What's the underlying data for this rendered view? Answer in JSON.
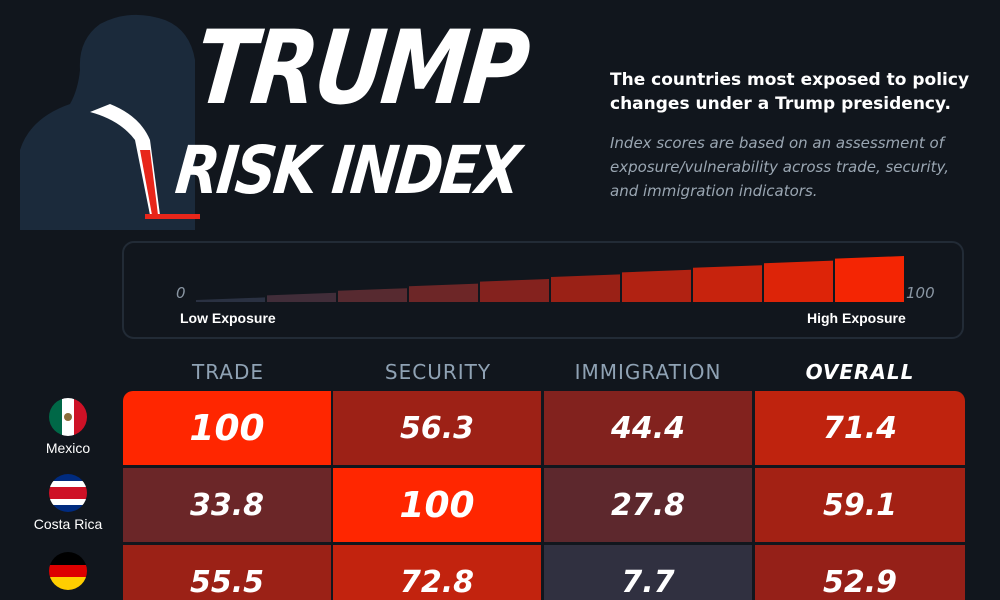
{
  "title": {
    "line1": "TRUMP",
    "line2": "RISK INDEX"
  },
  "subtitle": "The countries most exposed to policy changes under a Trump presidency.",
  "description": "Index scores are based on an assessment of exposure/vulnerability across trade, security, and immigration indicators.",
  "scale": {
    "min": "0",
    "max": "100",
    "low_label": "Low Exposure",
    "high_label": "High Exposure"
  },
  "colors": {
    "background": "#11161d",
    "high": "#ff2200",
    "low": "#1c3246",
    "mid": "#9a1f18"
  },
  "chart_data": {
    "type": "table",
    "columns": [
      "TRADE",
      "SECURITY",
      "IMMIGRATION",
      "OVERALL"
    ],
    "rows": [
      {
        "country": "Mexico",
        "flag": "mexico-flag",
        "values": [
          "100",
          "56.3",
          "44.4",
          "71.4"
        ]
      },
      {
        "country": "Costa Rica",
        "flag": "costa-rica-flag",
        "values": [
          "33.8",
          "100",
          "27.8",
          "59.1"
        ]
      },
      {
        "country": "",
        "flag": "germany-flag",
        "values": [
          "55.5",
          "72.8",
          "7.7",
          "52.9"
        ]
      }
    ]
  }
}
